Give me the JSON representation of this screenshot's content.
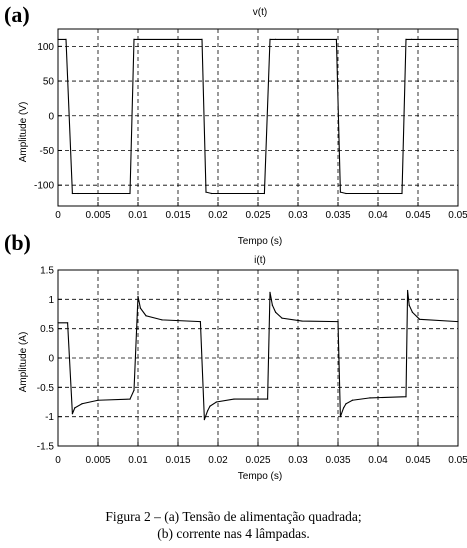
{
  "caption": {
    "line1": "Figura 2 – (a) Tensão de alimentação quadrada;",
    "line2": "(b) corrente nas 4 lâmpadas."
  },
  "chart_data": [
    {
      "panel_label": "(a)",
      "type": "line",
      "title": "v(t)",
      "xlabel": "Tempo (s)",
      "ylabel": "Amplitude (V)",
      "xlim": [
        0,
        0.05
      ],
      "ylim": [
        -130,
        125
      ],
      "xticks": [
        "0",
        "0.005",
        "0.01",
        "0.015",
        "0.02",
        "0.025",
        "0.03",
        "0.035",
        "0.04",
        "0.045",
        "0.05"
      ],
      "yticks": [
        "100",
        "50",
        "0",
        "-50",
        "-100"
      ],
      "ytick_values": [
        100,
        50,
        0,
        -50,
        -100
      ],
      "grid": true,
      "line_color": "#000000",
      "x": [
        0,
        0.001,
        0.0018,
        0.0025,
        0.009,
        0.0095,
        0.0102,
        0.018,
        0.0185,
        0.0192,
        0.0258,
        0.0265,
        0.0272,
        0.0348,
        0.0353,
        0.036,
        0.043,
        0.0435,
        0.0442,
        0.05
      ],
      "y": [
        110,
        110,
        -112,
        -112,
        -112,
        110,
        110,
        110,
        -110,
        -112,
        -112,
        110,
        110,
        110,
        -110,
        -112,
        -112,
        110,
        110,
        110
      ]
    },
    {
      "panel_label": "(b)",
      "type": "line",
      "title": "i(t)",
      "xlabel": "Tempo (s)",
      "ylabel": "Amplitude (A)",
      "xlim": [
        0,
        0.05
      ],
      "ylim": [
        -1.5,
        1.5
      ],
      "xticks": [
        "0",
        "0.005",
        "0.01",
        "0.015",
        "0.02",
        "0.025",
        "0.03",
        "0.035",
        "0.04",
        "0.045",
        "0.05"
      ],
      "yticks": [
        "1.5",
        "1",
        "0.5",
        "0",
        "-0.5",
        "-1",
        "-1.5"
      ],
      "ytick_values": [
        1.5,
        1,
        0.5,
        0,
        -0.5,
        -1,
        -1.5
      ],
      "grid": true,
      "line_color": "#000000",
      "x": [
        0,
        0.0012,
        0.0018,
        0.0021,
        0.003,
        0.005,
        0.009,
        0.0095,
        0.01,
        0.0103,
        0.011,
        0.013,
        0.0178,
        0.0183,
        0.0187,
        0.019,
        0.0198,
        0.022,
        0.0262,
        0.0265,
        0.0268,
        0.0272,
        0.028,
        0.0305,
        0.035,
        0.0353,
        0.0357,
        0.036,
        0.0368,
        0.039,
        0.0435,
        0.0437,
        0.0439,
        0.0443,
        0.0452,
        0.05
      ],
      "y": [
        0.6,
        0.6,
        -0.95,
        -0.85,
        -0.78,
        -0.72,
        -0.7,
        -0.55,
        1.05,
        0.85,
        0.72,
        0.65,
        0.62,
        -1.05,
        -0.9,
        -0.82,
        -0.75,
        -0.7,
        -0.7,
        1.12,
        0.9,
        0.78,
        0.68,
        0.63,
        0.62,
        -1.0,
        -0.85,
        -0.78,
        -0.72,
        -0.68,
        -0.66,
        1.15,
        0.9,
        0.78,
        0.66,
        0.62
      ]
    }
  ]
}
